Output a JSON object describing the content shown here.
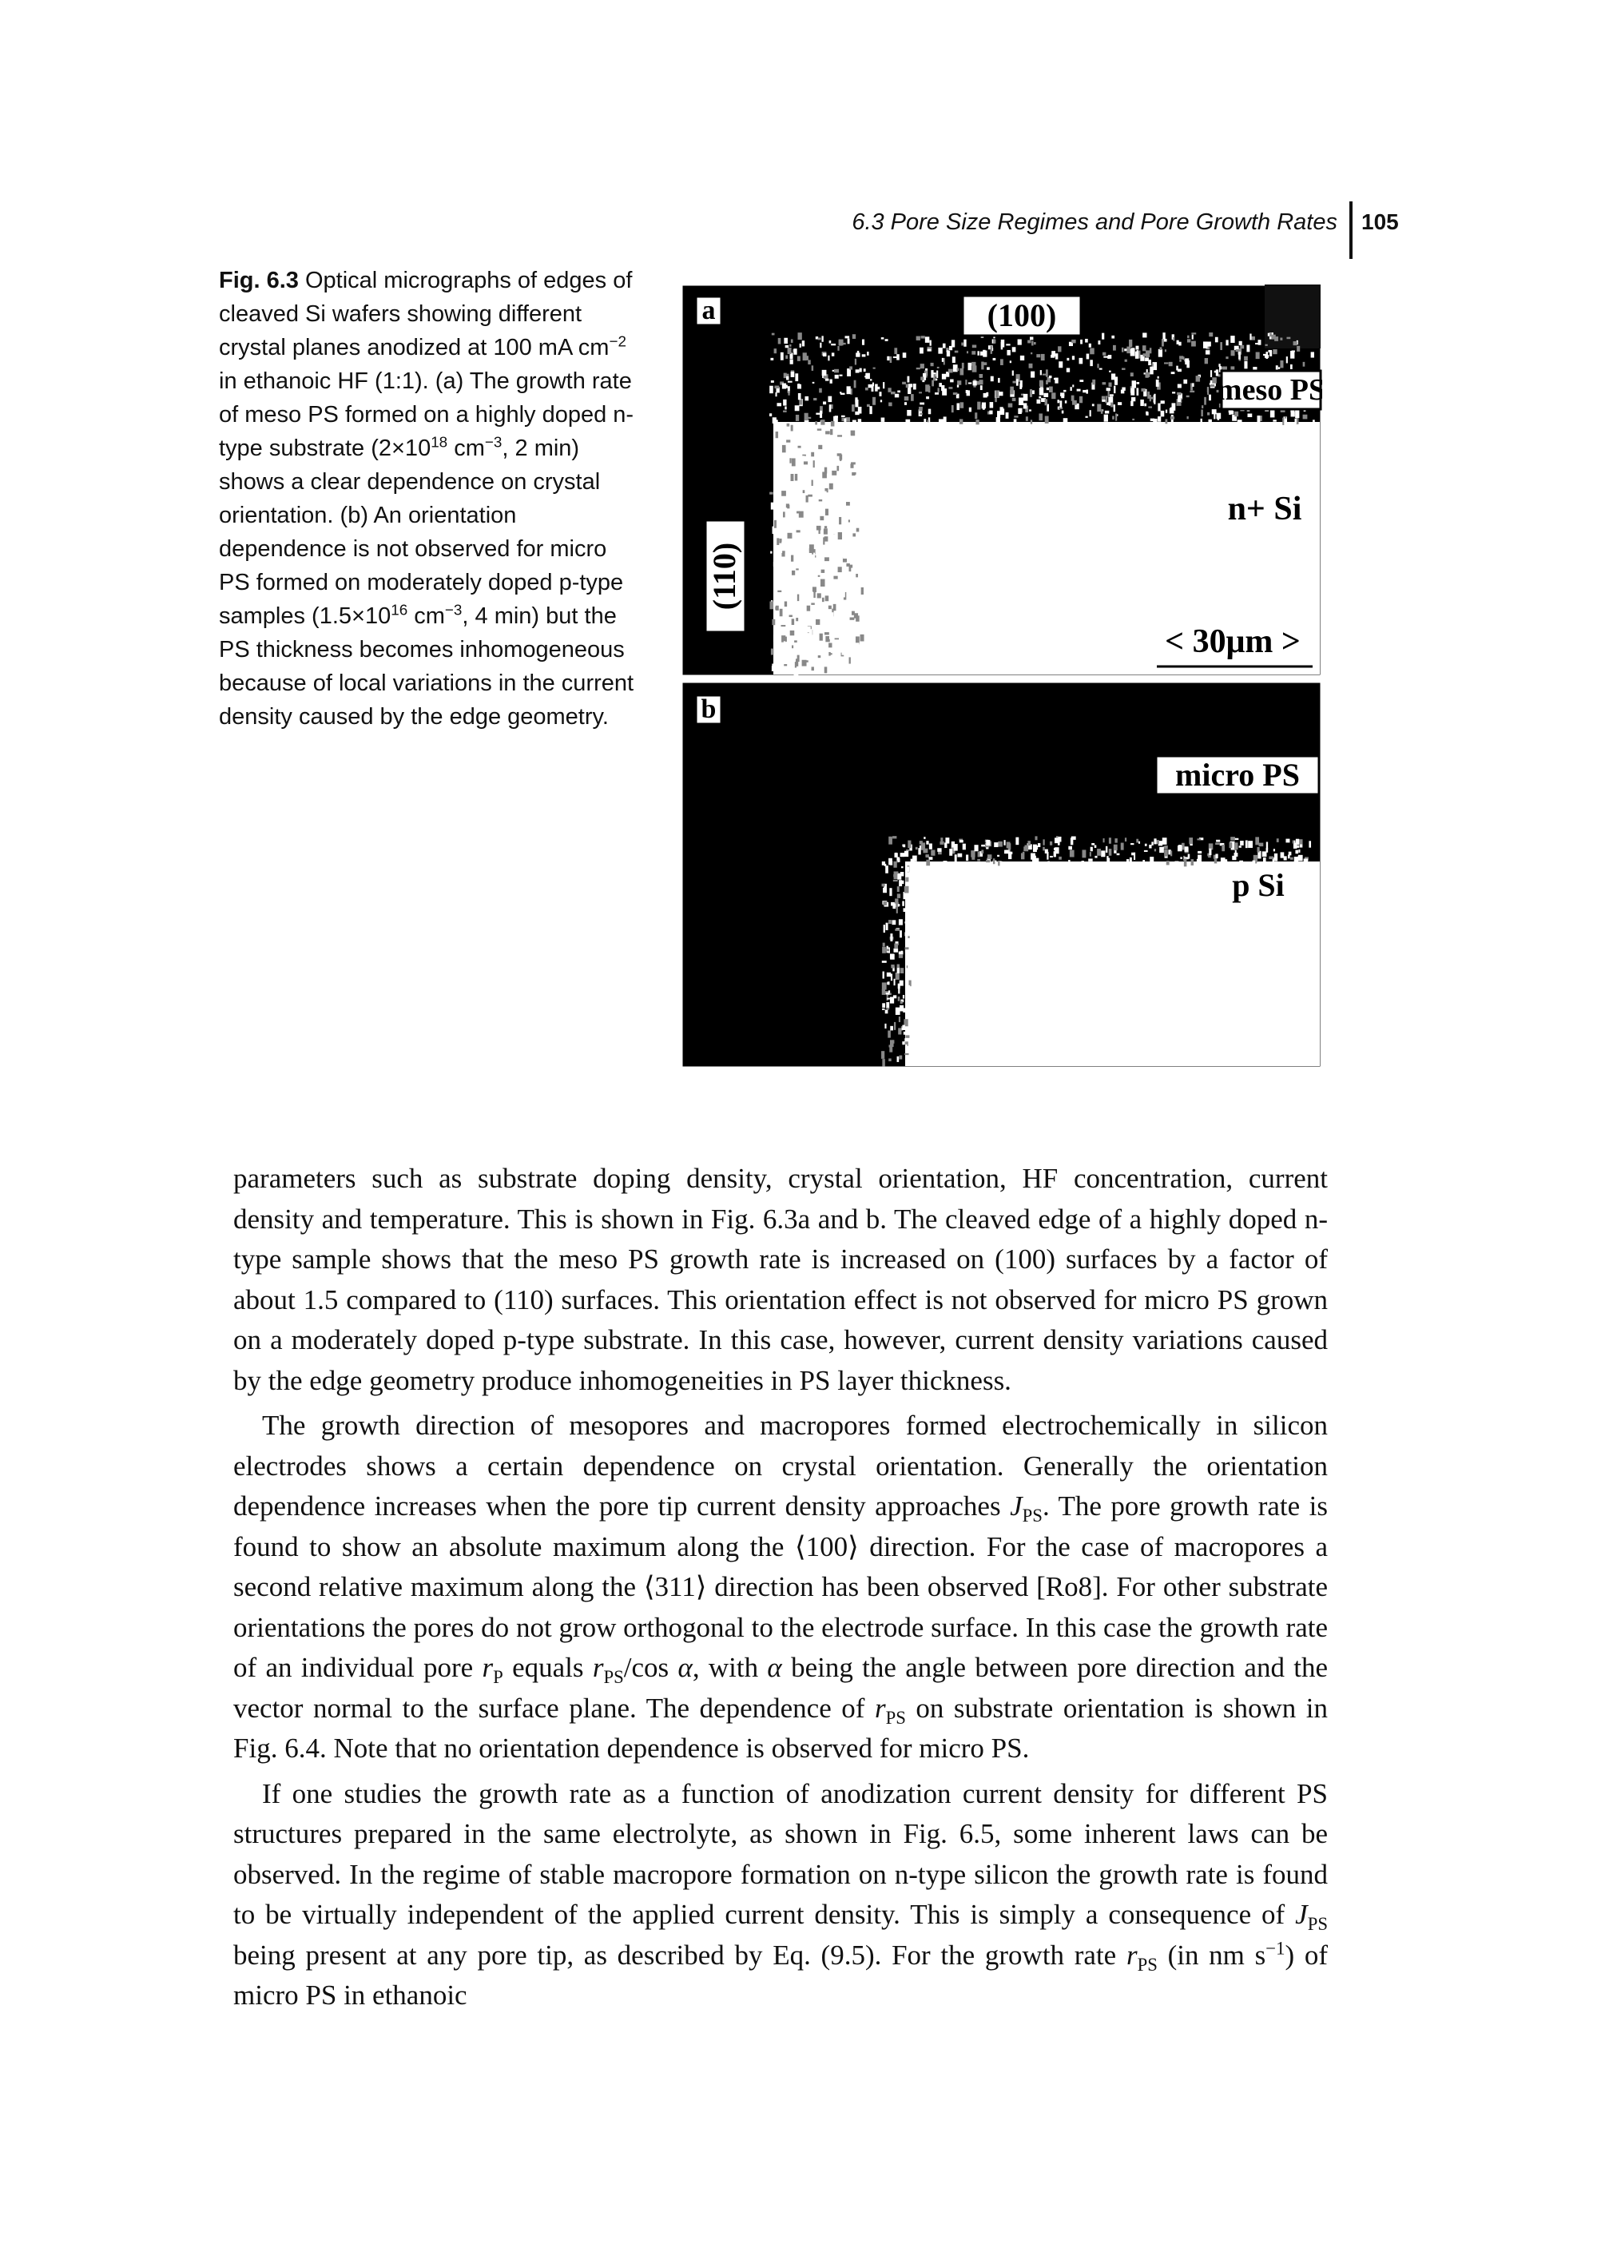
{
  "header": {
    "running_title": "6.3 Pore Size Regimes and Pore Growth Rates",
    "page_number": "105"
  },
  "figure": {
    "caption": [
      {
        "b": "Fig. 6.3"
      },
      " Optical micrographs of edges of cleaved Si wafers showing different crystal planes anodized at 100 mA cm",
      {
        "sup": "−2"
      },
      " in ethanoic HF (1:1). (a) The growth rate of meso PS formed on a highly doped n-type substrate (2×10",
      {
        "sup": "18"
      },
      " cm",
      {
        "sup": "−3"
      },
      ", 2 min) shows a clear dependence on crystal orientation. (b) An orientation dependence is not observed for micro PS formed on moderately doped p-type samples (1.5×10",
      {
        "sup": "16"
      },
      " cm",
      {
        "sup": "−3"
      },
      ", 4 min) but the PS thickness becomes inhomogeneous because of local variations in the current density caused by the edge geometry."
    ],
    "panel_a": {
      "label": "a",
      "top_plane": "(100)",
      "side_plane": "(110)",
      "layer": "meso PS",
      "substrate": "n+ Si",
      "scale": "< 30μm >"
    },
    "panel_b": {
      "label": "b",
      "layer": "micro PS",
      "substrate": "p Si"
    }
  },
  "body": {
    "paragraphs": [
      [
        "parameters such as substrate doping density, crystal orientation, HF concentration, current density and temperature. This is shown in Fig. 6.3a and b. The cleaved edge of a highly doped n-type sample shows that the meso PS growth rate is increased on (100) surfaces by a factor of about 1.5 compared to (110) surfaces. This orientation effect is not observed for micro PS grown on a moderately doped p-type substrate. In this case, however, current density variations caused by the edge geometry produce inhomogeneities in PS layer thickness."
      ],
      [
        "The growth direction of mesopores and macropores formed electrochemically in silicon electrodes shows a certain dependence on crystal orientation. Generally the orientation dependence increases when the pore tip current density approaches ",
        {
          "i": "J"
        },
        {
          "sub": "PS"
        },
        ". The pore growth rate is found to show an absolute maximum along the ⟨100⟩ direction. For the case of macropores a second relative maximum along the ⟨311⟩ direction has been observed [Ro8]. For other substrate orientations the pores do not grow orthogonal to the electrode surface. In this case the growth rate of an individual pore ",
        {
          "i": "r"
        },
        {
          "sub": "P"
        },
        " equals ",
        {
          "i": "r"
        },
        {
          "sub": "PS"
        },
        "/cos ",
        {
          "i": "α"
        },
        ", with ",
        {
          "i": "α"
        },
        " being the angle between pore direction and the vector normal to the surface plane. The dependence of ",
        {
          "i": "r"
        },
        {
          "sub": "PS"
        },
        " on substrate orientation is shown in Fig. 6.4. Note that no orientation dependence is observed for micro PS."
      ],
      [
        "If one studies the growth rate as a function of anodization current density for different PS structures prepared in the same electrolyte, as shown in Fig. 6.5, some inherent laws can be observed. In the regime of stable macropore formation on n-type silicon the growth rate is found to be virtually independent of the applied current density. This is simply a consequence of ",
        {
          "i": "J"
        },
        {
          "sub": "PS"
        },
        " being present at any pore tip, as described by Eq. (9.5). For the growth rate ",
        {
          "i": "r"
        },
        {
          "sub": "PS"
        },
        " (in nm s",
        {
          "sup": "−1"
        },
        ") of micro PS in ethanoic"
      ]
    ]
  }
}
